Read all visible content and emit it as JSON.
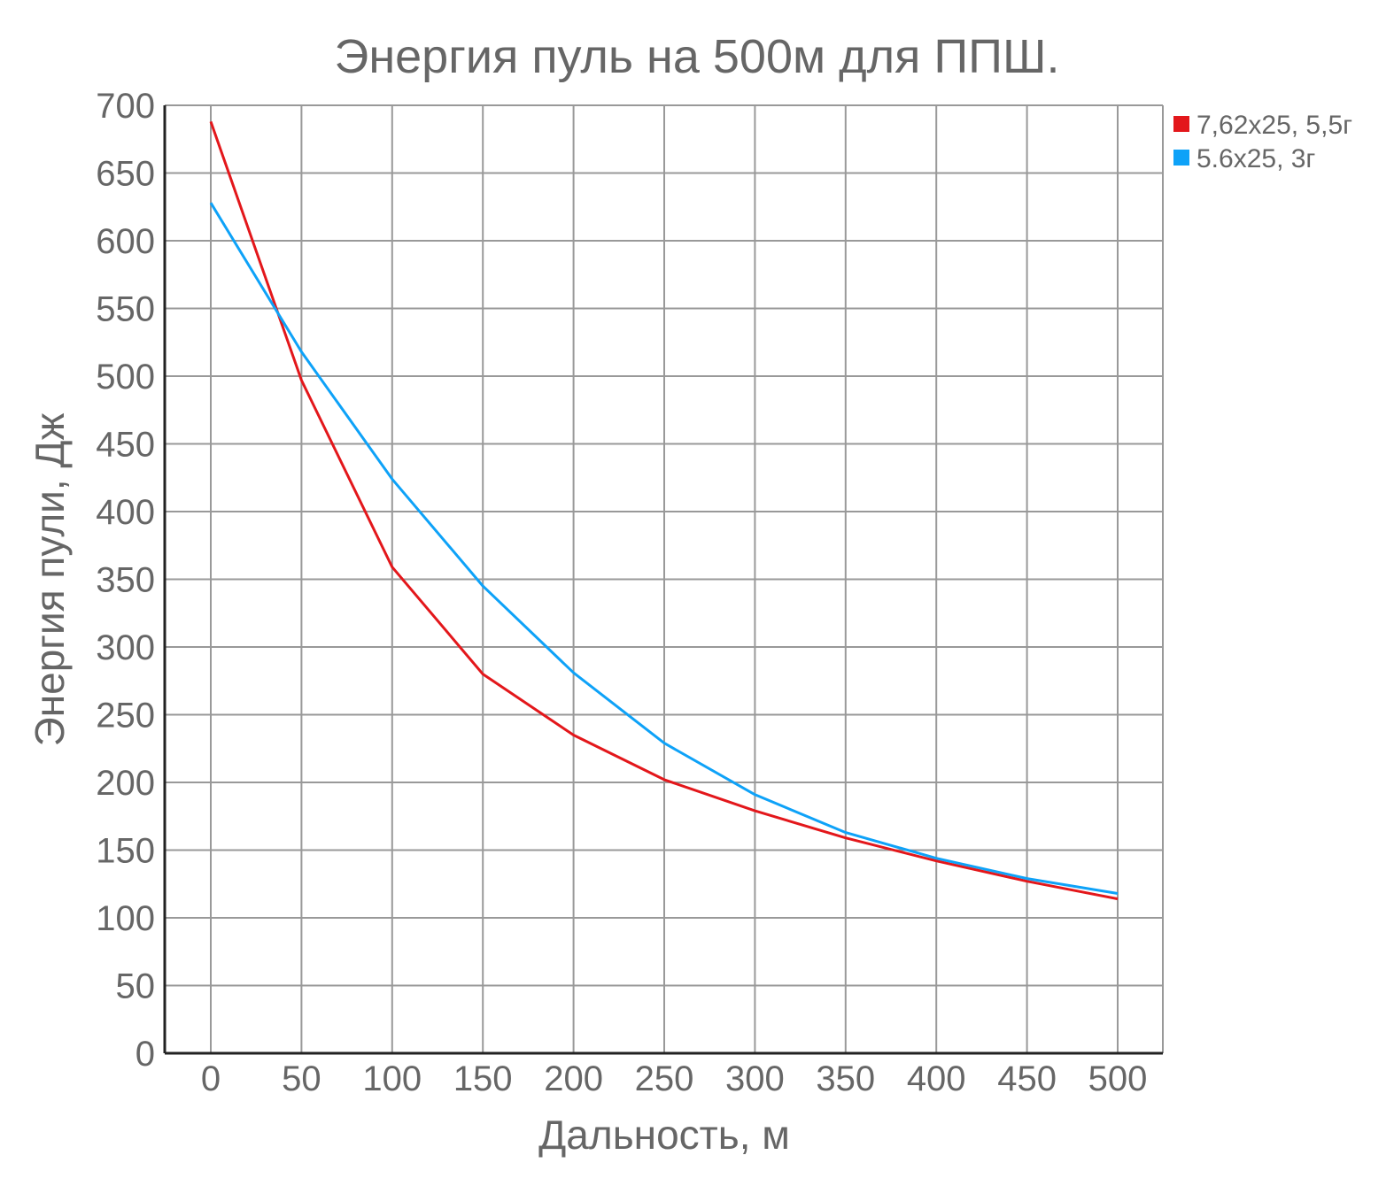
{
  "chart_data": {
    "type": "line",
    "title": "Энергия пуль на 500м для ППШ.",
    "xlabel": "Дальность, м",
    "ylabel": "Энергия пули, Дж",
    "x": [
      0,
      50,
      100,
      150,
      200,
      250,
      300,
      350,
      400,
      450,
      500
    ],
    "x_tick_labels": [
      "0",
      "50",
      "100",
      "150",
      "200",
      "250",
      "300",
      "350",
      "400",
      "450",
      "500"
    ],
    "y_tick_labels": [
      "0",
      "50",
      "100",
      "150",
      "200",
      "250",
      "300",
      "350",
      "400",
      "450",
      "500",
      "550",
      "600",
      "650",
      "700"
    ],
    "ylim": [
      0,
      700
    ],
    "grid": true,
    "legend_position": "right",
    "series": [
      {
        "name": "7,62x25, 5,5г",
        "color": "#e3171b",
        "values": [
          688,
          497,
          359,
          280,
          235,
          202,
          179,
          159,
          142,
          127,
          114
        ]
      },
      {
        "name": "5.6x25, 3г",
        "color": "#0ea2f8",
        "values": [
          628,
          518,
          424,
          345,
          281,
          229,
          191,
          163,
          144,
          129,
          118
        ]
      }
    ]
  }
}
